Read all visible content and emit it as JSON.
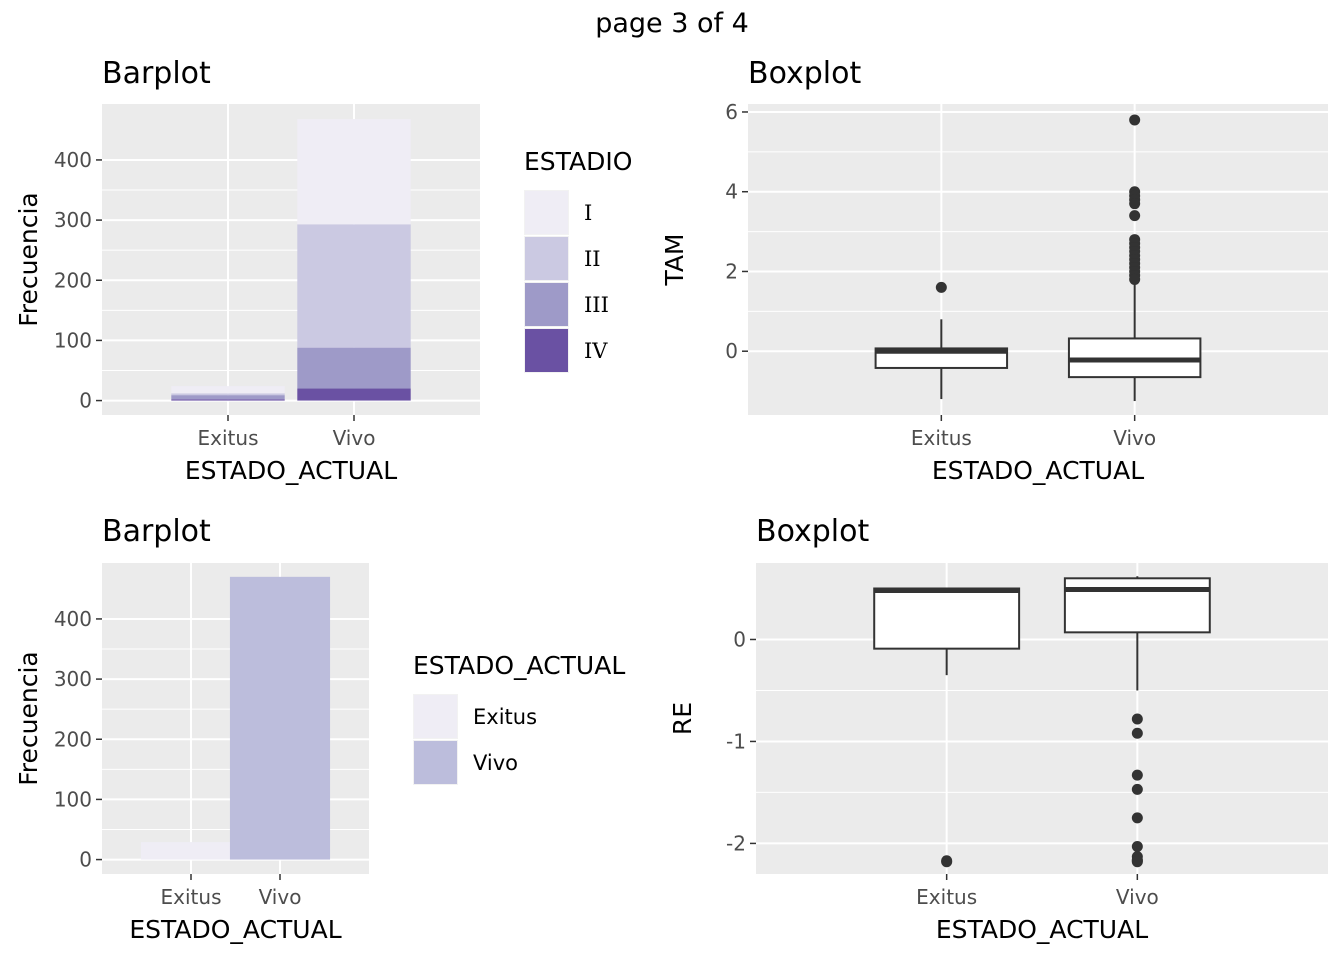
{
  "page_title": "page 3 of 4",
  "colors": {
    "panel": "#ebebeb",
    "grid": "#ffffff",
    "stage_I": "#efedf5",
    "stage_II": "#cbc9e2",
    "stage_III": "#9e9ac8",
    "stage_IV": "#6a51a3",
    "estado_Exitus": "#efedf5",
    "estado_Vivo": "#bcbddc",
    "box_line": "#333333"
  },
  "chart_data": [
    {
      "type": "bar",
      "title": "Barplot",
      "xlabel": "ESTADO_ACTUAL",
      "ylabel": "Frecuencia",
      "categories": [
        "Exitus",
        "Vivo"
      ],
      "stacked": true,
      "legend_title": "ESTADIO",
      "legend_position": "right",
      "series": [
        {
          "name": "I",
          "values": [
            12,
            175
          ]
        },
        {
          "name": "II",
          "values": [
            3,
            205
          ]
        },
        {
          "name": "III",
          "values": [
            7,
            68
          ]
        },
        {
          "name": "IV",
          "values": [
            2,
            20
          ]
        }
      ],
      "yticks": [
        0,
        100,
        200,
        300,
        400
      ],
      "ylim": [
        -24,
        493
      ],
      "grid": true
    },
    {
      "type": "box",
      "title": "Boxplot",
      "xlabel": "ESTADO_ACTUAL",
      "ylabel": "TAM",
      "categories": [
        "Exitus",
        "Vivo"
      ],
      "boxes": [
        {
          "category": "Exitus",
          "whisker_low": -1.2,
          "q1": -0.42,
          "median": 0.0,
          "q3": 0.07,
          "whisker_high": 0.8,
          "outliers": [
            1.6
          ]
        },
        {
          "category": "Vivo",
          "whisker_low": -1.25,
          "q1": -0.65,
          "median": -0.22,
          "q3": 0.32,
          "whisker_high": 1.75,
          "outliers": [
            5.8,
            4.0,
            3.9,
            3.8,
            3.7,
            3.4,
            2.8,
            2.7,
            2.6,
            2.5,
            2.4,
            2.3,
            2.2,
            2.1,
            2.0,
            1.9,
            1.8
          ]
        }
      ],
      "yticks": [
        0,
        2,
        4,
        6
      ],
      "ylim": [
        -1.6,
        6.2
      ],
      "grid": true
    },
    {
      "type": "bar",
      "title": "Barplot",
      "xlabel": "ESTADO_ACTUAL",
      "ylabel": "Frecuencia",
      "categories": [
        "Exitus",
        "Vivo"
      ],
      "values": [
        29,
        470
      ],
      "legend_title": "ESTADO_ACTUAL",
      "legend_position": "right",
      "legend_entries": [
        "Exitus",
        "Vivo"
      ],
      "yticks": [
        0,
        100,
        200,
        300,
        400
      ],
      "ylim": [
        -24,
        493
      ],
      "grid": true
    },
    {
      "type": "box",
      "title": "Boxplot",
      "xlabel": "ESTADO_ACTUAL",
      "ylabel": "RE",
      "categories": [
        "Exitus",
        "Vivo"
      ],
      "boxes": [
        {
          "category": "Exitus",
          "whisker_low": -0.35,
          "q1": -0.09,
          "median": 0.48,
          "q3": 0.5,
          "whisker_high": 0.5,
          "outliers": [
            -2.17,
            -2.18
          ]
        },
        {
          "category": "Vivo",
          "whisker_low": -0.5,
          "q1": 0.07,
          "median": 0.49,
          "q3": 0.6,
          "whisker_high": 0.62,
          "outliers": [
            -0.78,
            -0.92,
            -1.33,
            -1.47,
            -1.75,
            -2.03,
            -2.13,
            -2.16,
            -2.17,
            -2.18
          ]
        }
      ],
      "yticks": [
        0,
        -1,
        -2
      ],
      "ylim": [
        -2.3,
        0.75
      ],
      "grid": true
    }
  ]
}
